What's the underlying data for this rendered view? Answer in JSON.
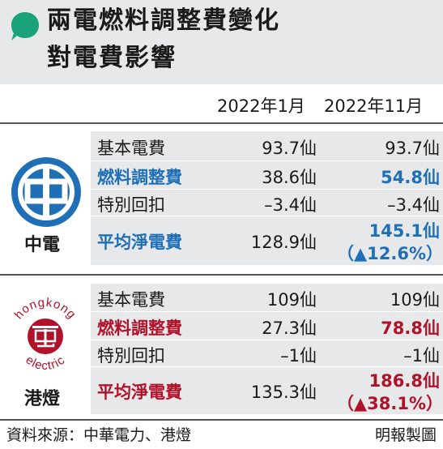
{
  "header": {
    "title_line1": "兩電燃料調整費變化",
    "title_line2": "對電費影響",
    "accent": "#1aa37a"
  },
  "columns": [
    "2022年1月",
    "2022年11月"
  ],
  "clp": {
    "name": "中電",
    "logo_text": "中",
    "rows": [
      {
        "label": "基本電費",
        "v1": "93.7仙",
        "v2": "93.7仙"
      },
      {
        "label": "燃料調整費",
        "v1": "38.6仙",
        "v2": "54.8仙"
      },
      {
        "label": "特別回扣",
        "v1": "–3.4仙",
        "v2": "–3.4仙"
      },
      {
        "label": "平均淨電費",
        "v1": "128.9仙",
        "v2": "145.1仙",
        "v2_change": "（▲12.6%）"
      }
    ],
    "color": "#1f6fb6"
  },
  "hke": {
    "name": "港燈",
    "logo_text": "電",
    "logo_ring_top": "hongkong",
    "logo_ring_bottom": "electric",
    "rows": [
      {
        "label": "基本電費",
        "v1": "109仙",
        "v2": "109仙"
      },
      {
        "label": "燃料調整費",
        "v1": "27.3仙",
        "v2": "78.8仙"
      },
      {
        "label": "特別回扣",
        "v1": "–1仙",
        "v2": "–1仙"
      },
      {
        "label": "平均淨電費",
        "v1": "135.3仙",
        "v2": "186.8仙",
        "v2_change": "（▲38.1%）"
      }
    ],
    "color": "#b0122a"
  },
  "footer": {
    "source": "資料來源：中華電力、港燈",
    "credit": "明報製圖"
  }
}
